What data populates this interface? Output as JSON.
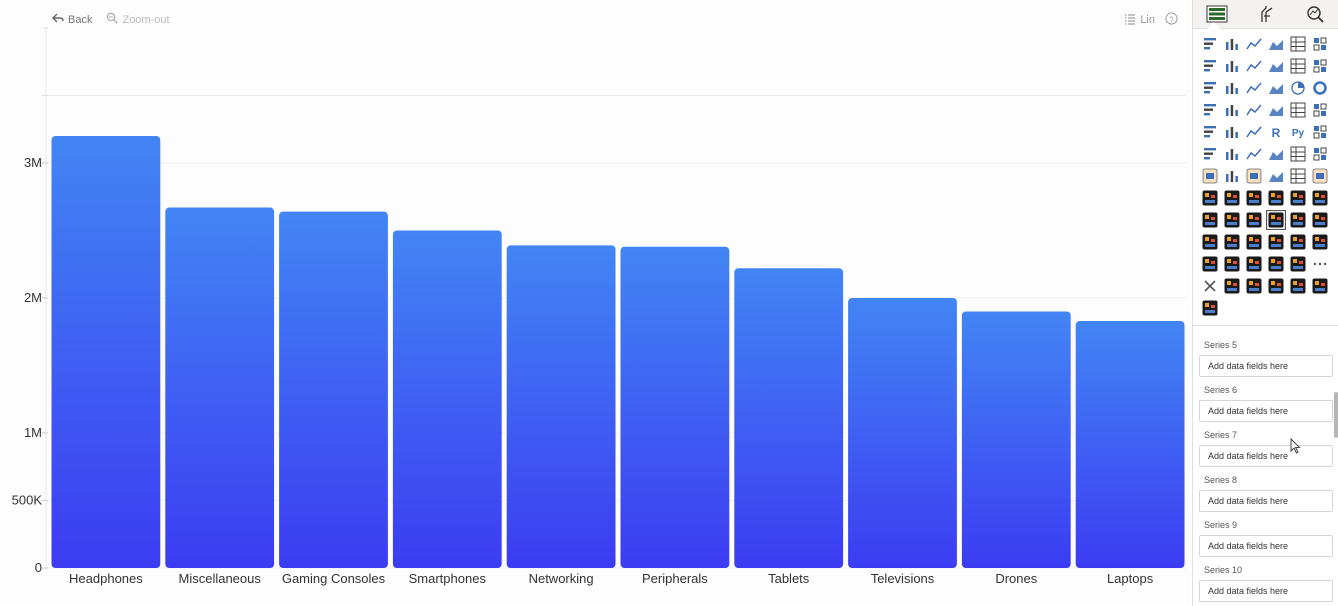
{
  "toolbar": {
    "back_label": "Back",
    "zoom_out_label": "Zoom-out",
    "scale_label": "Lin",
    "help_icon": "help-icon"
  },
  "chart_data": {
    "type": "bar",
    "categories": [
      "Headphones",
      "Miscellaneous",
      "Gaming Consoles",
      "Smartphones",
      "Networking",
      "Peripherals",
      "Tablets",
      "Televisions",
      "Drones",
      "Laptops"
    ],
    "values": [
      3200000,
      2670000,
      2640000,
      2500000,
      2390000,
      2380000,
      2220000,
      2000000,
      1900000,
      1830000
    ],
    "yticks": [
      {
        "value": 0,
        "label": "0"
      },
      {
        "value": 500000,
        "label": "500K"
      },
      {
        "value": 1000000,
        "label": "1M"
      },
      {
        "value": 2000000,
        "label": "2M"
      },
      {
        "value": 3000000,
        "label": "3M"
      }
    ],
    "ylim": [
      0,
      4000000
    ],
    "grid": true,
    "bar_color_top": "#4285f4",
    "bar_color_bottom": "#3c3cf2"
  },
  "right_pane": {
    "tabs": [
      "build-visual-icon",
      "format-icon",
      "analytics-icon"
    ],
    "viz_icons": [
      "stacked-bar-icon",
      "clustered-bar-icon",
      "stacked-column-icon",
      "clustered-column-icon",
      "100-bar-icon",
      "100-column-icon",
      "line-icon",
      "area-icon",
      "stacked-area-icon",
      "ribbon-icon",
      "waterfall-icon",
      "line-column-icon",
      "line-stacked-column-icon",
      "line-clustered-icon",
      "funnel-icon",
      "scatter-icon",
      "pie-icon",
      "donut-icon",
      "treemap-icon",
      "map-icon",
      "filled-map-icon",
      "arcgis-icon",
      "gauge-icon",
      "card-icon",
      "multi-card-icon",
      "table-icon",
      "matrix-icon",
      "r-visual-icon",
      "python-visual-icon",
      "kpi-icon",
      "decomposition-tree-icon",
      "paginated-icon",
      "key-influencers-icon",
      "smart-narrative-icon",
      "qna-icon",
      "slicer-icon",
      "custom-visual-1-icon",
      "image-icon",
      "custom-visual-2-icon",
      "diamond-icon",
      "chevron-icon",
      "custom-visual-3-icon",
      "custom-pro-1-icon",
      "custom-pro-2-icon",
      "custom-pro-3-icon",
      "custom-pro-4-icon",
      "custom-pro-5-icon",
      "custom-pro-6-icon",
      "custom-pro-7-icon",
      "custom-pro-8-icon",
      "custom-pro-9-icon",
      "custom-pro-selected-icon",
      "custom-pro-10-icon",
      "custom-pro-11-icon",
      "custom-pro-12-icon",
      "custom-pro-13-icon",
      "custom-pro-14-icon",
      "custom-pro-15-icon",
      "custom-pro-16-icon",
      "custom-pro-17-icon",
      "custom-pro-18-icon",
      "custom-pro-19-icon",
      "custom-pro-20-icon",
      "custom-pro-21-icon",
      "custom-pro-22-icon",
      "more-icon",
      "tools-icon",
      "custom-pro-23-icon",
      "custom-pro-24-icon",
      "custom-pro-25-icon",
      "custom-pro-26-icon",
      "custom-pro-27-icon",
      "custom-pro-28-icon"
    ],
    "series": [
      {
        "label": "Series 5",
        "placeholder": "Add data fields here"
      },
      {
        "label": "Series 6",
        "placeholder": "Add data fields here"
      },
      {
        "label": "Series 7",
        "placeholder": "Add data fields here"
      },
      {
        "label": "Series 8",
        "placeholder": "Add data fields here"
      },
      {
        "label": "Series 9",
        "placeholder": "Add data fields here"
      },
      {
        "label": "Series 10",
        "placeholder": "Add data fields here"
      }
    ]
  }
}
